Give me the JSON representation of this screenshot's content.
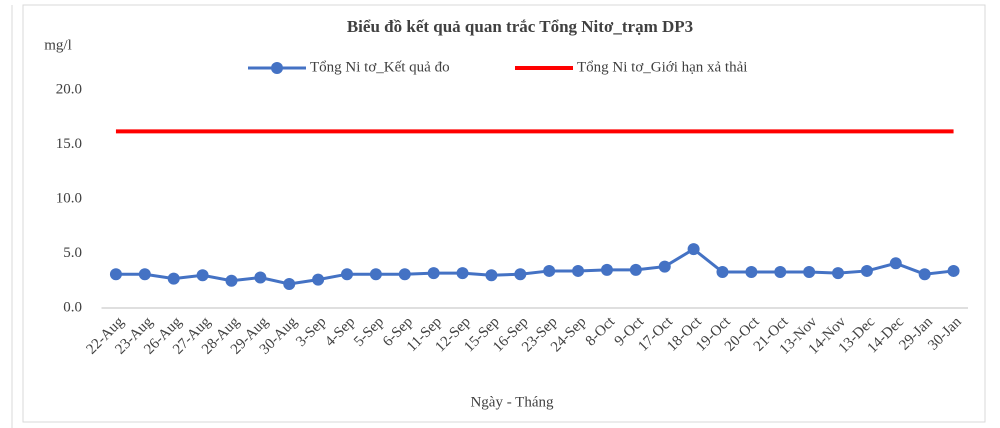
{
  "chart_data": {
    "type": "line",
    "title": "Biểu đồ kết quả quan trắc Tổng Nitơ_trạm DP3",
    "y_axis_label": "mg/l",
    "x_axis_label": "Ngày - Tháng",
    "categories": [
      "22-Aug",
      "23-Aug",
      "26-Aug",
      "27-Aug",
      "28-Aug",
      "29-Aug",
      "30-Aug",
      "3-Sep",
      "4-Sep",
      "5-Sep",
      "6-Sep",
      "11-Sep",
      "12-Sep",
      "15-Sep",
      "16-Sep",
      "23-Sep",
      "24-Sep",
      "8-Oct",
      "9-Oct",
      "17-Oct",
      "18-Oct",
      "19-Oct",
      "20-Oct",
      "21-Oct",
      "13-Nov",
      "14-Nov",
      "13-Dec",
      "14-Dec",
      "29-Jan",
      "30-Jan"
    ],
    "series": [
      {
        "name": "Tổng Ni tơ_Kết quả đo",
        "color": "#4472c4",
        "marker": true,
        "values": [
          3.1,
          3.1,
          2.7,
          3.0,
          2.5,
          2.8,
          2.2,
          2.6,
          3.1,
          3.1,
          3.1,
          3.2,
          3.2,
          3.0,
          3.1,
          3.4,
          3.4,
          3.5,
          3.5,
          3.8,
          5.4,
          3.3,
          3.3,
          3.3,
          3.3,
          3.2,
          3.4,
          4.1,
          3.1,
          3.4
        ]
      },
      {
        "name": "Tổng Ni tơ_Giới hạn xả thải",
        "color": "#ff0000",
        "marker": false,
        "values": [
          16.2,
          16.2,
          16.2,
          16.2,
          16.2,
          16.2,
          16.2,
          16.2,
          16.2,
          16.2,
          16.2,
          16.2,
          16.2,
          16.2,
          16.2,
          16.2,
          16.2,
          16.2,
          16.2,
          16.2,
          16.2,
          16.2,
          16.2,
          16.2,
          16.2,
          16.2,
          16.2,
          16.2,
          16.2,
          16.2
        ]
      }
    ],
    "ylim": [
      0,
      20
    ],
    "yticks": [
      {
        "value": 0,
        "label": "0.0"
      },
      {
        "value": 5,
        "label": "5.0"
      },
      {
        "value": 10,
        "label": "10.0"
      },
      {
        "value": 15,
        "label": "15.0"
      },
      {
        "value": 20,
        "label": "20.0"
      }
    ],
    "grid": false
  }
}
